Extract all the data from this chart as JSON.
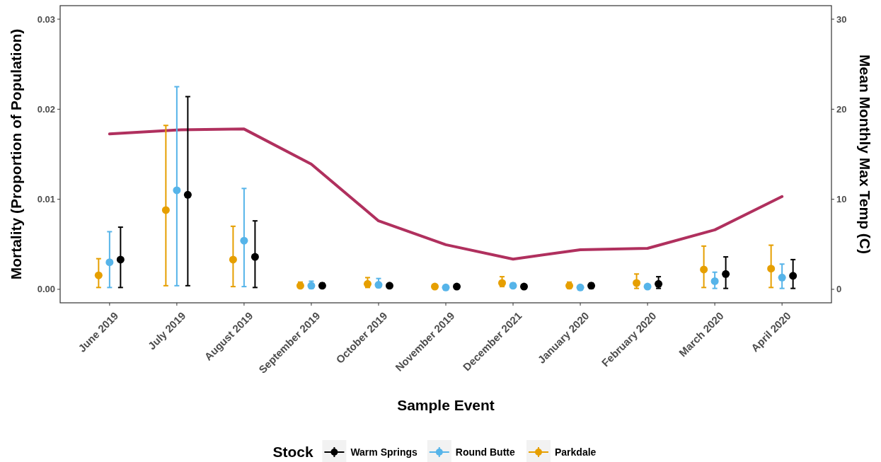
{
  "chart_data": {
    "type": "scatter",
    "xlabel": "Sample Event",
    "ylabel": "Mortality (Proportion of Population)",
    "y2label": "Mean Monthly Max Temp (C)",
    "legend_title": "Stock",
    "legend": "bottom",
    "marker": "circle",
    "grid": false,
    "categories": [
      "June 2019",
      "July 2019",
      "August 2019",
      "September 2019",
      "October 2019",
      "November 2019",
      "December 2021",
      "January 2020",
      "February 2020",
      "March 2020",
      "April 2020"
    ],
    "ylim": [
      -0.0015,
      0.0315
    ],
    "yticks": [
      {
        "value": 0,
        "label": "0.00"
      },
      {
        "value": 0.01,
        "label": "0.01"
      },
      {
        "value": 0.02,
        "label": "0.02"
      },
      {
        "value": 0.03,
        "label": "0.03"
      }
    ],
    "y2lim": [
      -1.5,
      31.5
    ],
    "y2ticks": [
      0,
      10,
      20,
      30
    ],
    "series": [
      {
        "name": "Warm Springs",
        "color": "#000000",
        "values": [
          0.0033,
          0.0105,
          0.0036,
          0.0004,
          0.0004,
          0.0003,
          0.0003,
          0.0004,
          0.0006,
          0.0017,
          0.0015
        ],
        "errors": [
          [
            0.0002,
            0.0069
          ],
          [
            0.0004,
            0.0214
          ],
          [
            0.0002,
            0.0076
          ],
          [
            0.0002,
            0.0007
          ],
          [
            0.0002,
            0.0006
          ],
          null,
          [
            0.0001,
            0.0005
          ],
          [
            0.0001,
            0.0007
          ],
          [
            0.0001,
            0.0014
          ],
          [
            0.0001,
            0.0036
          ],
          [
            0.0001,
            0.0033
          ]
        ]
      },
      {
        "name": "Round Butte",
        "color": "#56b4e9",
        "values": [
          0.003,
          0.011,
          0.0054,
          0.0004,
          0.0005,
          0.0002,
          0.0004,
          0.0002,
          0.0003,
          0.0009,
          0.0013
        ],
        "errors": [
          [
            0.0002,
            0.0064
          ],
          [
            0.0004,
            0.0225
          ],
          [
            0.0003,
            0.0112
          ],
          [
            0.0001,
            0.0009
          ],
          [
            0.0002,
            0.0012
          ],
          null,
          [
            0.0002,
            0.0007
          ],
          null,
          null,
          [
            0.0001,
            0.0019
          ],
          [
            0.0001,
            0.0028
          ]
        ]
      },
      {
        "name": "Parkdale",
        "color": "#e69f00",
        "values": [
          0.00155,
          0.0088,
          0.0033,
          0.0004,
          0.0006,
          0.0003,
          0.0007,
          0.0004,
          0.0007,
          0.0022,
          0.0023
        ],
        "errors": [
          [
            0.0002,
            0.0034
          ],
          [
            0.0004,
            0.0182
          ],
          [
            0.0003,
            0.007
          ],
          [
            0.0002,
            0.0008
          ],
          [
            0.0002,
            0.0013
          ],
          null,
          [
            0.0003,
            0.0014
          ],
          [
            0.0001,
            0.0008
          ],
          [
            0.0001,
            0.0017
          ],
          [
            0.0002,
            0.0048
          ],
          [
            0.0002,
            0.0049
          ]
        ]
      },
      {
        "type": "line",
        "axis": "y2",
        "color": "#b0305e",
        "line_style": "solid",
        "marker": "none",
        "values": [
          17.25,
          17.7,
          17.8,
          13.9,
          7.6,
          4.95,
          3.35,
          4.4,
          4.55,
          6.6,
          10.3
        ]
      }
    ]
  }
}
